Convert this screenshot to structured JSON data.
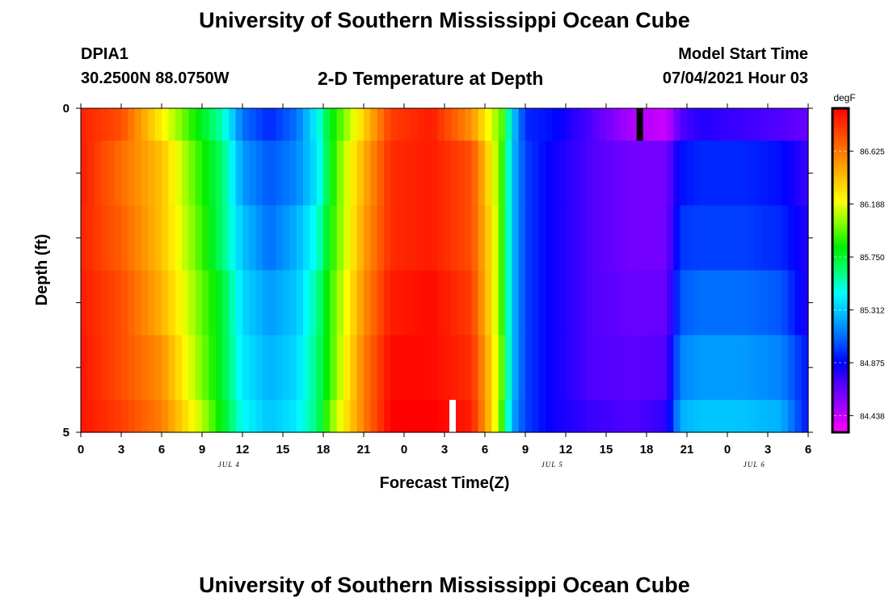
{
  "header": {
    "title": "University of Southern Mississippi Ocean Cube",
    "station": "DPIA1",
    "coords": "30.2500N  88.0750W",
    "subtitle": "2-D Temperature at Depth",
    "model_start_label": "Model Start Time",
    "model_start_value": "07/04/2021 Hour 03"
  },
  "footer": {
    "title": "University of Southern Mississippi Ocean Cube"
  },
  "chart_data": {
    "type": "heatmap",
    "xlabel": "Forecast Time(Z)",
    "ylabel": "Depth (ft)",
    "xlim": [
      0,
      54
    ],
    "ylim": [
      5,
      0
    ],
    "x_tick_labels": [
      "0",
      "3",
      "6",
      "9",
      "12",
      "15",
      "18",
      "21",
      "0",
      "3",
      "6",
      "9",
      "12",
      "15",
      "18",
      "21",
      "0",
      "3",
      "6"
    ],
    "y_tick_labels": [
      "0",
      "5"
    ],
    "date_labels": [
      {
        "label": "JUL 4",
        "hour": 11
      },
      {
        "label": "JUL 5",
        "hour": 35
      },
      {
        "label": "JUL 6",
        "hour": 50
      }
    ],
    "colorbar": {
      "unit": "degF",
      "min": 84.3,
      "max": 86.98,
      "tick_labels": [
        "86.625",
        "86.188",
        "85.750",
        "85.312",
        "84.875",
        "84.438"
      ],
      "tick_values": [
        86.625,
        86.188,
        85.75,
        85.312,
        84.875,
        84.438
      ],
      "colors": [
        "#ff00ff",
        "#aa00ff",
        "#5a00ff",
        "#0000ff",
        "#0060ff",
        "#00b4ff",
        "#00ffff",
        "#00ff70",
        "#00ee00",
        "#80ff00",
        "#ffff00",
        "#ffc000",
        "#ff8000",
        "#ff4000",
        "#ff0000"
      ]
    },
    "depth_levels": [
      0,
      1,
      2,
      3,
      4,
      5
    ],
    "time_keyframes": [
      0,
      3,
      6,
      8.5,
      10.5,
      12,
      14,
      16,
      17.6,
      18.5,
      19.5,
      21,
      23,
      26,
      29,
      30.5,
      31.3,
      32,
      33,
      35,
      38,
      41,
      43.5,
      44.5,
      46,
      49,
      52,
      54
    ],
    "temperature_keyframes": [
      [
        86.88,
        86.75,
        86.25,
        85.85,
        85.55,
        85.1,
        84.95,
        85.1,
        85.45,
        85.8,
        86.0,
        86.35,
        86.8,
        86.9,
        86.55,
        86.15,
        85.95,
        85.35,
        84.95,
        84.9,
        84.7,
        84.48,
        84.42,
        84.7,
        84.8,
        84.75,
        84.7,
        84.65
      ],
      [
        86.9,
        86.65,
        86.4,
        85.95,
        85.65,
        85.2,
        85.05,
        85.15,
        85.4,
        85.8,
        86.1,
        86.45,
        86.85,
        86.9,
        86.75,
        86.25,
        85.9,
        85.3,
        85.0,
        84.85,
        84.7,
        84.62,
        84.62,
        84.9,
        84.95,
        84.95,
        84.9,
        84.75
      ],
      [
        86.88,
        86.7,
        86.4,
        86.0,
        85.65,
        85.3,
        85.1,
        85.25,
        85.5,
        85.85,
        86.1,
        86.5,
        86.85,
        86.9,
        86.75,
        86.3,
        85.9,
        85.3,
        85.0,
        84.85,
        84.7,
        84.62,
        84.62,
        84.98,
        85.0,
        85.0,
        84.95,
        84.8
      ],
      [
        86.9,
        86.75,
        86.45,
        86.05,
        85.75,
        85.35,
        85.2,
        85.3,
        85.6,
        85.9,
        86.15,
        86.55,
        86.9,
        86.95,
        86.8,
        86.3,
        85.9,
        85.3,
        85.0,
        84.85,
        84.7,
        84.65,
        84.65,
        85.05,
        85.1,
        85.1,
        85.05,
        84.8
      ],
      [
        86.92,
        86.75,
        86.55,
        86.1,
        85.75,
        85.4,
        85.25,
        85.35,
        85.65,
        85.9,
        86.2,
        86.6,
        86.95,
        86.95,
        86.85,
        86.35,
        85.95,
        85.3,
        85.0,
        84.85,
        84.7,
        84.68,
        84.7,
        85.15,
        85.2,
        85.2,
        85.15,
        84.9
      ],
      [
        86.92,
        86.8,
        86.6,
        86.2,
        85.8,
        85.45,
        85.3,
        85.4,
        85.65,
        86.0,
        86.25,
        86.6,
        86.98,
        86.98,
        86.9,
        86.35,
        85.9,
        85.25,
        85.0,
        84.85,
        84.75,
        84.7,
        84.78,
        85.25,
        85.3,
        85.3,
        85.25,
        84.9
      ]
    ],
    "markers": [
      {
        "label": "observation-gap",
        "hour": 41.5,
        "depth_from": 0,
        "depth_to": 0.5,
        "color": "#000000"
      },
      {
        "label": "observation-gap",
        "hour": 27.6,
        "depth_from": 4.5,
        "depth_to": 5,
        "color": "#ffffff"
      }
    ]
  }
}
